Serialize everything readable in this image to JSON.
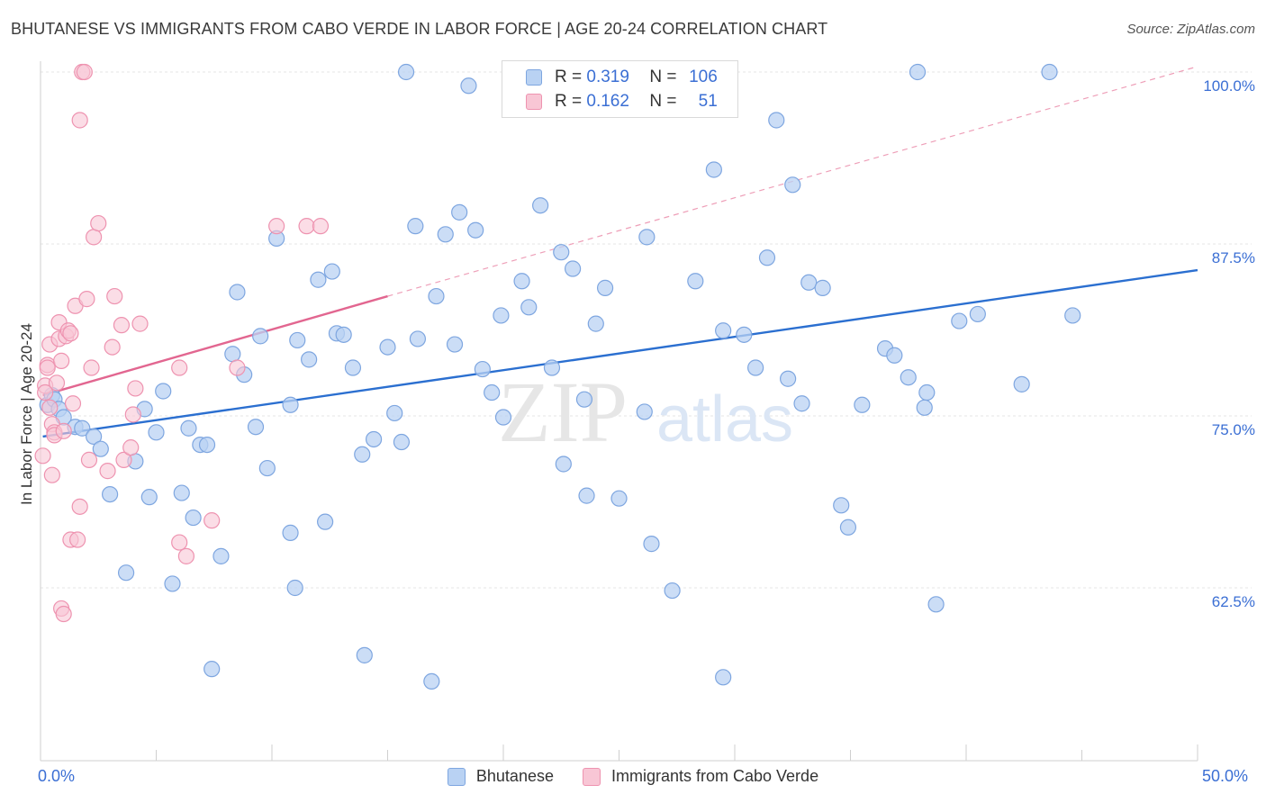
{
  "header": {
    "title": "BHUTANESE VS IMMIGRANTS FROM CABO VERDE IN LABOR FORCE | AGE 20-24 CORRELATION CHART",
    "source": "Source: ZipAtlas.com"
  },
  "watermark": {
    "zip": "ZIP",
    "atlas": "atlas"
  },
  "legend_top": {
    "rows": [
      {
        "r_label": "R =",
        "r_value": "0.319",
        "n_label": "N =",
        "n_value": "106",
        "color": "#a9c8f0"
      },
      {
        "r_label": "R =",
        "r_value": "0.162",
        "n_label": "N =",
        "n_value": "51",
        "color": "#f6b3c8"
      }
    ]
  },
  "colors": {
    "blue_fill": "#b9d2f3",
    "blue_stroke": "#7ea6e0",
    "blue_line": "#2b6fd0",
    "pink_fill": "#f8c6d5",
    "pink_stroke": "#ee93b0",
    "pink_line": "#e26690",
    "axis_label": "#3b6fd4",
    "grid": "#e4e4e4"
  },
  "chart_data": {
    "type": "scatter",
    "title": "BHUTANESE VS IMMIGRANTS FROM CABO VERDE IN LABOR FORCE | AGE 20-24 CORRELATION CHART",
    "xlabel": "",
    "ylabel": "In Labor Force | Age 20-24",
    "xlim": [
      0,
      50
    ],
    "ylim": [
      52.0,
      101.5
    ],
    "x_tick_labels": [
      "0.0%",
      "50.0%"
    ],
    "y_ticks": [
      62.5,
      75.0,
      87.5,
      100.0
    ],
    "y_tick_labels": [
      "62.5%",
      "75.0%",
      "87.5%",
      "100.0%"
    ],
    "grid": true,
    "legend_position": "top-center",
    "series": [
      {
        "name": "Bhutanese",
        "stats": {
          "R": 0.319,
          "N": 106
        },
        "trend": {
          "x": [
            0.1,
            50.0
          ],
          "y": [
            73.5,
            85.6
          ]
        },
        "points": [
          [
            0.3,
            75.8
          ],
          [
            0.5,
            76.5
          ],
          [
            0.6,
            76.2
          ],
          [
            0.8,
            75.5
          ],
          [
            1.0,
            74.9
          ],
          [
            1.5,
            74.2
          ],
          [
            1.8,
            74.1
          ],
          [
            2.3,
            73.5
          ],
          [
            2.6,
            72.6
          ],
          [
            3.0,
            69.3
          ],
          [
            3.7,
            63.6
          ],
          [
            4.1,
            71.7
          ],
          [
            4.5,
            75.5
          ],
          [
            4.7,
            69.1
          ],
          [
            5.0,
            73.8
          ],
          [
            5.3,
            76.8
          ],
          [
            5.7,
            62.8
          ],
          [
            6.1,
            69.4
          ],
          [
            6.4,
            74.1
          ],
          [
            6.6,
            67.6
          ],
          [
            6.9,
            72.9
          ],
          [
            7.2,
            72.9
          ],
          [
            7.4,
            56.6
          ],
          [
            7.8,
            64.8
          ],
          [
            8.3,
            79.5
          ],
          [
            8.5,
            84.0
          ],
          [
            8.8,
            78.0
          ],
          [
            9.3,
            74.2
          ],
          [
            9.5,
            80.8
          ],
          [
            9.8,
            71.2
          ],
          [
            10.2,
            87.9
          ],
          [
            10.8,
            75.8
          ],
          [
            11.0,
            62.5
          ],
          [
            11.1,
            80.5
          ],
          [
            11.6,
            79.1
          ],
          [
            12.0,
            84.9
          ],
          [
            12.3,
            67.3
          ],
          [
            12.6,
            85.5
          ],
          [
            12.8,
            81.0
          ],
          [
            13.1,
            80.9
          ],
          [
            13.5,
            78.5
          ],
          [
            13.9,
            72.2
          ],
          [
            14.0,
            57.6
          ],
          [
            14.4,
            73.3
          ],
          [
            15.0,
            80.0
          ],
          [
            15.3,
            75.2
          ],
          [
            15.6,
            73.1
          ],
          [
            15.8,
            100.0
          ],
          [
            16.2,
            88.8
          ],
          [
            16.3,
            80.6
          ],
          [
            16.9,
            55.7
          ],
          [
            17.1,
            83.7
          ],
          [
            17.5,
            88.2
          ],
          [
            17.9,
            80.2
          ],
          [
            18.1,
            89.8
          ],
          [
            18.5,
            99.0
          ],
          [
            18.8,
            88.5
          ],
          [
            19.1,
            78.4
          ],
          [
            19.5,
            76.7
          ],
          [
            19.9,
            82.3
          ],
          [
            20.0,
            74.9
          ],
          [
            20.8,
            84.8
          ],
          [
            21.1,
            82.9
          ],
          [
            21.6,
            90.3
          ],
          [
            22.1,
            78.5
          ],
          [
            22.5,
            86.9
          ],
          [
            22.6,
            71.5
          ],
          [
            23.0,
            85.7
          ],
          [
            23.5,
            76.2
          ],
          [
            23.6,
            69.2
          ],
          [
            24.0,
            81.7
          ],
          [
            24.4,
            84.3
          ],
          [
            26.1,
            75.3
          ],
          [
            26.2,
            88.0
          ],
          [
            26.4,
            65.7
          ],
          [
            27.3,
            62.3
          ],
          [
            28.3,
            84.8
          ],
          [
            29.1,
            92.9
          ],
          [
            29.5,
            81.2
          ],
          [
            30.4,
            80.9
          ],
          [
            30.9,
            78.5
          ],
          [
            31.4,
            86.5
          ],
          [
            31.8,
            96.5
          ],
          [
            32.3,
            77.7
          ],
          [
            32.5,
            91.8
          ],
          [
            32.9,
            75.9
          ],
          [
            33.2,
            84.7
          ],
          [
            33.8,
            84.3
          ],
          [
            34.6,
            68.5
          ],
          [
            34.9,
            66.9
          ],
          [
            35.5,
            75.8
          ],
          [
            36.5,
            79.9
          ],
          [
            36.9,
            79.4
          ],
          [
            37.5,
            77.8
          ],
          [
            37.9,
            100.0
          ],
          [
            38.2,
            75.6
          ],
          [
            38.3,
            76.7
          ],
          [
            38.7,
            61.3
          ],
          [
            39.7,
            81.9
          ],
          [
            40.5,
            82.4
          ],
          [
            42.4,
            77.3
          ],
          [
            43.6,
            100.0
          ],
          [
            44.6,
            82.3
          ],
          [
            29.5,
            56.0
          ],
          [
            10.8,
            66.5
          ],
          [
            25.0,
            69.0
          ]
        ]
      },
      {
        "name": "Immigrants from Cabo Verde",
        "stats": {
          "R": 0.162,
          "N": 51
        },
        "trend": {
          "x": [
            0.1,
            15.0
          ],
          "y": [
            76.5,
            83.7
          ]
        },
        "trend_extension": {
          "x": [
            15.0,
            50.0
          ],
          "y": [
            83.7,
            100.4
          ]
        },
        "points": [
          [
            0.1,
            72.1
          ],
          [
            0.2,
            77.2
          ],
          [
            0.3,
            78.7
          ],
          [
            0.3,
            78.5
          ],
          [
            0.4,
            80.2
          ],
          [
            0.5,
            74.4
          ],
          [
            0.5,
            70.7
          ],
          [
            0.6,
            73.8
          ],
          [
            0.6,
            73.6
          ],
          [
            0.7,
            77.4
          ],
          [
            0.8,
            80.6
          ],
          [
            0.8,
            81.8
          ],
          [
            0.9,
            79.0
          ],
          [
            0.9,
            61.0
          ],
          [
            1.0,
            60.6
          ],
          [
            1.1,
            80.8
          ],
          [
            1.2,
            81.2
          ],
          [
            1.3,
            66.0
          ],
          [
            1.4,
            75.9
          ],
          [
            1.5,
            83.0
          ],
          [
            1.6,
            66.0
          ],
          [
            1.7,
            68.4
          ],
          [
            1.7,
            96.5
          ],
          [
            1.8,
            100.0
          ],
          [
            1.9,
            100.0
          ],
          [
            2.0,
            83.5
          ],
          [
            2.1,
            71.8
          ],
          [
            2.2,
            78.5
          ],
          [
            2.3,
            88.0
          ],
          [
            2.5,
            89.0
          ],
          [
            2.9,
            71.0
          ],
          [
            3.1,
            80.0
          ],
          [
            3.2,
            83.7
          ],
          [
            3.5,
            81.6
          ],
          [
            3.6,
            71.8
          ],
          [
            3.9,
            72.7
          ],
          [
            4.0,
            75.1
          ],
          [
            4.1,
            77.0
          ],
          [
            4.3,
            81.7
          ],
          [
            6.0,
            78.5
          ],
          [
            6.0,
            65.8
          ],
          [
            6.3,
            64.8
          ],
          [
            7.4,
            67.4
          ],
          [
            8.5,
            78.5
          ],
          [
            10.2,
            88.8
          ],
          [
            11.5,
            88.8
          ],
          [
            12.1,
            88.8
          ],
          [
            0.2,
            76.7
          ],
          [
            0.4,
            75.6
          ],
          [
            1.0,
            73.9
          ],
          [
            1.3,
            81.0
          ]
        ]
      }
    ]
  },
  "legend_bottom": {
    "items": [
      {
        "label": "Bhutanese"
      },
      {
        "label": "Immigrants from Cabo Verde"
      }
    ]
  }
}
